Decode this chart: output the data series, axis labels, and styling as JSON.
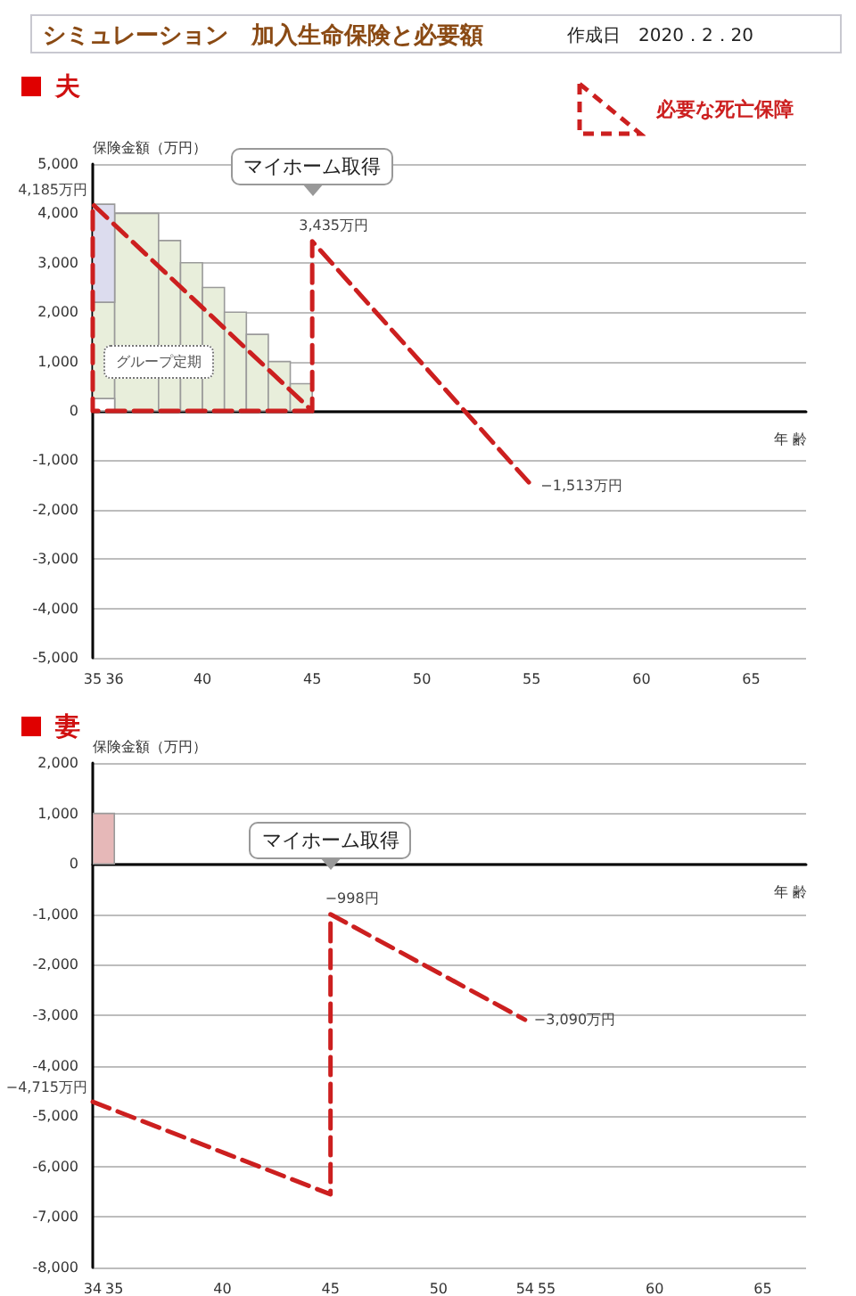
{
  "chart_data": [
    {
      "type": "line",
      "title": "シミュレーション　加入生命保険と必要額",
      "subtitle": "夫",
      "xlabel": "年 齢",
      "ylabel": "保険金額（万円）",
      "xlim": [
        35,
        67.5
      ],
      "xticks": [
        35,
        36,
        40,
        45,
        50,
        55,
        60,
        65
      ],
      "ylim": [
        -5000,
        5000
      ],
      "yticks": [
        {
          "value": -5000,
          "label": "-5,000"
        },
        {
          "value": -4000,
          "label": "-4,000"
        },
        {
          "value": -3000,
          "label": "-3,000"
        },
        {
          "value": -2000,
          "label": "-2,000"
        },
        {
          "value": -1000,
          "label": "-1,000"
        },
        0,
        {
          "value": 1000,
          "label": "1,000"
        },
        {
          "value": 2000,
          "label": "2,000"
        },
        {
          "value": 3000,
          "label": "3,000"
        },
        {
          "value": 4000,
          "label": "4,000"
        },
        {
          "value": 5000,
          "label": "5,000"
        }
      ],
      "grid": "y",
      "legend": "top right",
      "marker": "none",
      "line_style": "dashed",
      "series": [
        {
          "type": "histogram",
          "name": "グループ定期",
          "color": "#e8eedb",
          "bins": [
            35,
            36,
            38,
            39,
            40,
            41,
            42,
            43,
            44,
            45
          ],
          "values": [
            2200,
            4000,
            3450,
            3000,
            2500,
            2000,
            1550,
            1000,
            550
          ]
        },
        {
          "type": "histogram",
          "color": "#dcdcee",
          "bins": [
            35,
            36
          ],
          "values": [
            1985
          ],
          "base": [
            2200
          ]
        },
        {
          "type": "histogram",
          "color": "#ffffff",
          "bins": [
            35,
            36
          ],
          "values": [
            250
          ]
        },
        {
          "name": "必要な死亡保障",
          "color": "#cc1f1f",
          "x": [
            45,
            35,
            35,
            45,
            45,
            55
          ],
          "values": [
            0,
            0,
            4185,
            0,
            3435,
            -1513
          ],
          "value_labels": [
            null,
            null,
            "4,185万円",
            null,
            "3,435万円",
            "−1,513万円"
          ]
        }
      ],
      "annotations": [
        "作成日　2020．2．20",
        "マイホーム取得"
      ]
    },
    {
      "type": "line",
      "title": "妻",
      "xlabel": "年 齢",
      "ylabel": "保険金額（万円）",
      "xlim": [
        34,
        67
      ],
      "xticks": [
        34,
        35,
        40,
        45,
        50,
        54,
        55,
        60,
        65
      ],
      "ylim": [
        -8000,
        2000
      ],
      "yticks": [
        {
          "value": -8000,
          "label": "-8,000"
        },
        {
          "value": -7000,
          "label": "-7,000"
        },
        {
          "value": -6000,
          "label": "-6,000"
        },
        {
          "value": -5000,
          "label": "-5,000"
        },
        {
          "value": -4000,
          "label": "-4,000"
        },
        {
          "value": -3000,
          "label": "-3,000"
        },
        {
          "value": -2000,
          "label": "-2,000"
        },
        {
          "value": -1000,
          "label": "-1,000"
        },
        0,
        {
          "value": 1000,
          "label": "1,000"
        },
        {
          "value": 2000,
          "label": "2,000"
        }
      ],
      "grid": "y",
      "marker": "none",
      "line_style": "dashed",
      "series": [
        {
          "type": "histogram",
          "color": "#e6b8b8",
          "bins": [
            34,
            35
          ],
          "values": [
            1000
          ]
        },
        {
          "color": "#cc1f1f",
          "x": [
            34,
            45,
            45,
            54
          ],
          "values": [
            -4715,
            -6550,
            -998,
            -3090
          ],
          "value_labels": [
            "−4,715万円",
            null,
            "−998円",
            "−3,090万円"
          ]
        }
      ],
      "annotations": [
        "マイホーム取得"
      ]
    }
  ]
}
